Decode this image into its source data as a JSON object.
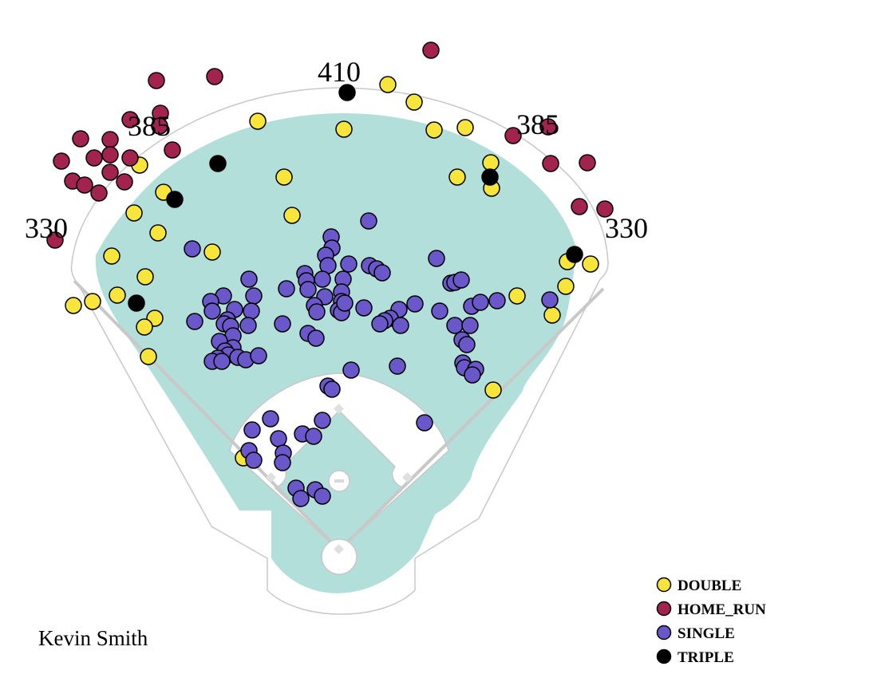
{
  "player_name": "Kevin Smith",
  "chart_data": {
    "type": "scatter",
    "distance_labels": [
      "330",
      "385",
      "410",
      "385",
      "330"
    ],
    "colors": {
      "DOUBLE": "#f7e53b",
      "HOME_RUN": "#a3234f",
      "SINGLE": "#6a57c9",
      "TRIPLE": "#000000",
      "field_grass": "#b3dfdb",
      "field_lines": "#c8c8c8"
    },
    "legend": {
      "placement": "bottom-right",
      "entries": [
        "DOUBLE",
        "HOME_RUN",
        "SINGLE",
        "TRIPLE"
      ]
    },
    "series": [
      {
        "name": "DOUBLE",
        "points": [
          [
            486,
            106
          ],
          [
            519,
            128
          ],
          [
            544,
            163
          ],
          [
            583,
            160
          ],
          [
            615,
            204
          ],
          [
            616,
            236
          ],
          [
            573,
            222
          ],
          [
            431,
            162
          ],
          [
            323,
            152
          ],
          [
            356,
            222
          ],
          [
            366,
            270
          ],
          [
            175,
            207
          ],
          [
            205,
            241
          ],
          [
            168,
            267
          ],
          [
            198,
            292
          ],
          [
            140,
            321
          ],
          [
            266,
            316
          ],
          [
            182,
            347
          ],
          [
            147,
            370
          ],
          [
            116,
            378
          ],
          [
            92,
            383
          ],
          [
            194,
            399
          ],
          [
            181,
            410
          ],
          [
            186,
            447
          ],
          [
            648,
            371
          ],
          [
            711,
            328
          ],
          [
            740,
            331
          ],
          [
            709,
            359
          ],
          [
            692,
            395
          ],
          [
            618,
            489
          ],
          [
            305,
            574
          ]
        ]
      },
      {
        "name": "HOME_RUN",
        "points": [
          [
            540,
            63
          ],
          [
            269,
            96
          ],
          [
            196,
            101
          ],
          [
            201,
            142
          ],
          [
            163,
            150
          ],
          [
            200,
            158
          ],
          [
            216,
            188
          ],
          [
            101,
            174
          ],
          [
            138,
            175
          ],
          [
            77,
            202
          ],
          [
            118,
            198
          ],
          [
            138,
            194
          ],
          [
            163,
            198
          ],
          [
            91,
            227
          ],
          [
            106,
            232
          ],
          [
            124,
            242
          ],
          [
            138,
            216
          ],
          [
            156,
            228
          ],
          [
            69,
            301
          ],
          [
            643,
            170
          ],
          [
            687,
            159
          ],
          [
            690,
            205
          ],
          [
            736,
            204
          ],
          [
            726,
            259
          ],
          [
            758,
            262
          ]
        ]
      },
      {
        "name": "SINGLE",
        "points": [
          [
            462,
            277
          ],
          [
            415,
            297
          ],
          [
            416,
            311
          ],
          [
            408,
            320
          ],
          [
            411,
            333
          ],
          [
            437,
            331
          ],
          [
            463,
            333
          ],
          [
            472,
            337
          ],
          [
            479,
            342
          ],
          [
            382,
            343
          ],
          [
            384,
            352
          ],
          [
            404,
            350
          ],
          [
            386,
            363
          ],
          [
            359,
            362
          ],
          [
            430,
            350
          ],
          [
            428,
            366
          ],
          [
            407,
            372
          ],
          [
            394,
            383
          ],
          [
            428,
            378
          ],
          [
            424,
            389
          ],
          [
            397,
            391
          ],
          [
            428,
            392
          ],
          [
            456,
            386
          ],
          [
            432,
            380
          ],
          [
            500,
            388
          ],
          [
            489,
            399
          ],
          [
            482,
            402
          ],
          [
            476,
            406
          ],
          [
            502,
            408
          ],
          [
            520,
            381
          ],
          [
            547,
            324
          ],
          [
            565,
            355
          ],
          [
            570,
            354
          ],
          [
            578,
            351
          ],
          [
            551,
            390
          ],
          [
            591,
            384
          ],
          [
            602,
            379
          ],
          [
            623,
            377
          ],
          [
            570,
            408
          ],
          [
            589,
            408
          ],
          [
            579,
            426
          ],
          [
            585,
            432
          ],
          [
            580,
            455
          ],
          [
            582,
            461
          ],
          [
            596,
            463
          ],
          [
            592,
            470
          ],
          [
            689,
            376
          ],
          [
            241,
            312
          ],
          [
            280,
            371
          ],
          [
            264,
            378
          ],
          [
            312,
            350
          ],
          [
            318,
            371
          ],
          [
            294,
            388
          ],
          [
            315,
            390
          ],
          [
            285,
            401
          ],
          [
            281,
            406
          ],
          [
            289,
            409
          ],
          [
            311,
            408
          ],
          [
            266,
            390
          ],
          [
            244,
            403
          ],
          [
            354,
            406
          ],
          [
            386,
            418
          ],
          [
            396,
            424
          ],
          [
            292,
            421
          ],
          [
            275,
            428
          ],
          [
            292,
            436
          ],
          [
            282,
            440
          ],
          [
            286,
            445
          ],
          [
            273,
            449
          ],
          [
            266,
            453
          ],
          [
            278,
            453
          ],
          [
            298,
            448
          ],
          [
            308,
            451
          ],
          [
            324,
            446
          ],
          [
            498,
            459
          ],
          [
            440,
            464
          ],
          [
            411,
            484
          ],
          [
            416,
            488
          ],
          [
            339,
            525
          ],
          [
            316,
            539
          ],
          [
            404,
            527
          ],
          [
            349,
            550
          ],
          [
            379,
            544
          ],
          [
            393,
            547
          ],
          [
            532,
            530
          ],
          [
            355,
            568
          ],
          [
            354,
            580
          ],
          [
            312,
            565
          ],
          [
            318,
            577
          ],
          [
            371,
            612
          ],
          [
            377,
            625
          ],
          [
            395,
            614
          ],
          [
            404,
            622
          ]
        ]
      },
      {
        "name": "TRIPLE",
        "points": [
          [
            435,
            116
          ],
          [
            273,
            205
          ],
          [
            219,
            250
          ],
          [
            614,
            222
          ],
          [
            720,
            319
          ],
          [
            171,
            380
          ]
        ]
      }
    ]
  }
}
